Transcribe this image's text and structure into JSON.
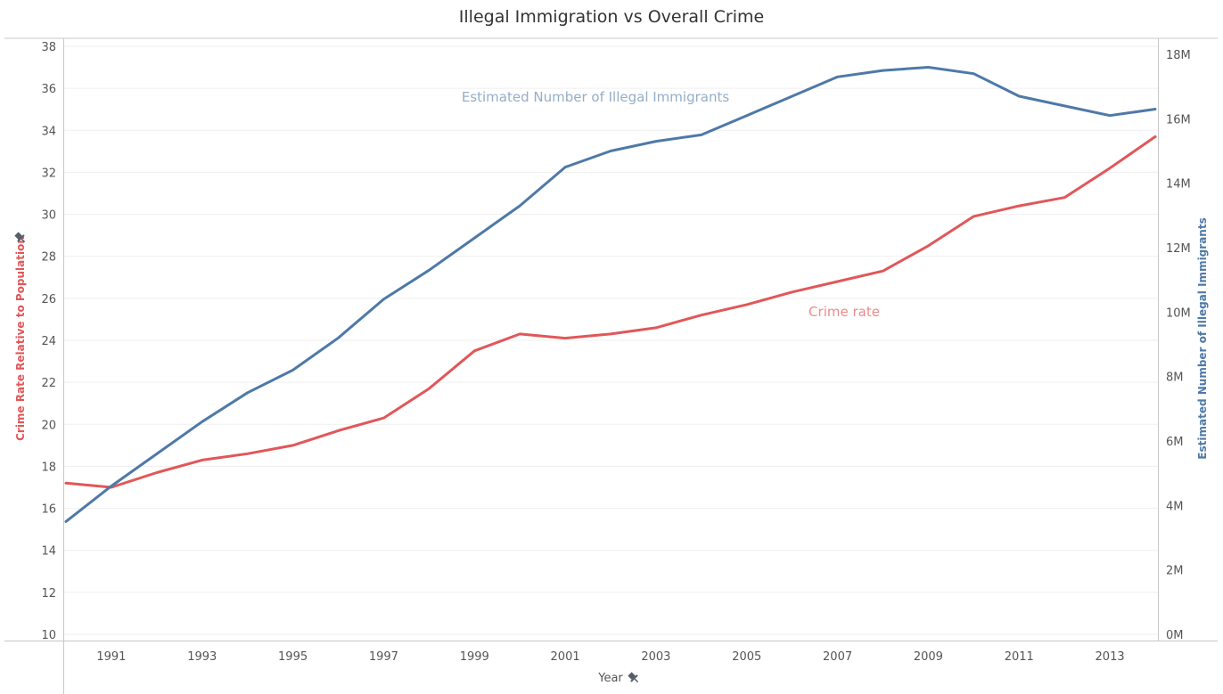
{
  "chart_title": "Illegal Immigration vs Overall Crime",
  "chart_data": {
    "type": "line",
    "title": "Illegal Immigration vs Overall Crime",
    "xlabel": "Year",
    "ylabel_left": "Crime Rate Relative to Population",
    "ylabel_right": "Estimated Number of Illegal Immigrants",
    "x": [
      1990,
      1991,
      1992,
      1993,
      1994,
      1995,
      1996,
      1997,
      1998,
      1999,
      2000,
      2001,
      2002,
      2003,
      2004,
      2005,
      2006,
      2007,
      2008,
      2009,
      2010,
      2011,
      2012,
      2013,
      2014
    ],
    "x_ticks": [
      "1991",
      "1993",
      "1995",
      "1997",
      "1999",
      "2001",
      "2003",
      "2005",
      "2007",
      "2009",
      "2011",
      "2013"
    ],
    "y_left_ticks": [
      "10",
      "12",
      "14",
      "16",
      "18",
      "20",
      "22",
      "24",
      "26",
      "28",
      "30",
      "32",
      "34",
      "36",
      "38"
    ],
    "y_right_ticks": [
      "0M",
      "2M",
      "4M",
      "6M",
      "8M",
      "10M",
      "12M",
      "14M",
      "16M",
      "18M"
    ],
    "ylim_left": [
      10,
      38
    ],
    "ylim_right": [
      0,
      18
    ],
    "grid": true,
    "series": [
      {
        "axis": "left",
        "color": "#e15759",
        "values": [
          17.2,
          17.0,
          17.7,
          18.3,
          18.6,
          19.0,
          19.7,
          20.3,
          21.7,
          23.5,
          24.3,
          24.1,
          24.3,
          24.6,
          25.2,
          25.7,
          26.3,
          26.8,
          27.3,
          28.5,
          29.9,
          30.4,
          30.8,
          32.2,
          33.7
        ]
      },
      {
        "axis": "right",
        "color": "#4e79a7",
        "values": [
          3.5,
          4.6,
          5.6,
          6.6,
          7.5,
          8.2,
          9.2,
          10.4,
          11.3,
          12.3,
          13.3,
          14.5,
          15.0,
          15.3,
          15.5,
          16.1,
          16.7,
          17.3,
          17.5,
          17.6,
          17.4,
          16.7,
          16.4,
          16.1,
          16.3
        ]
      }
    ],
    "annotations": [
      {
        "text": "Estimated Number of Illegal Immigrants",
        "color": "#94aec7"
      },
      {
        "text": "Crime rate",
        "color": "#ee8a8a"
      }
    ]
  }
}
